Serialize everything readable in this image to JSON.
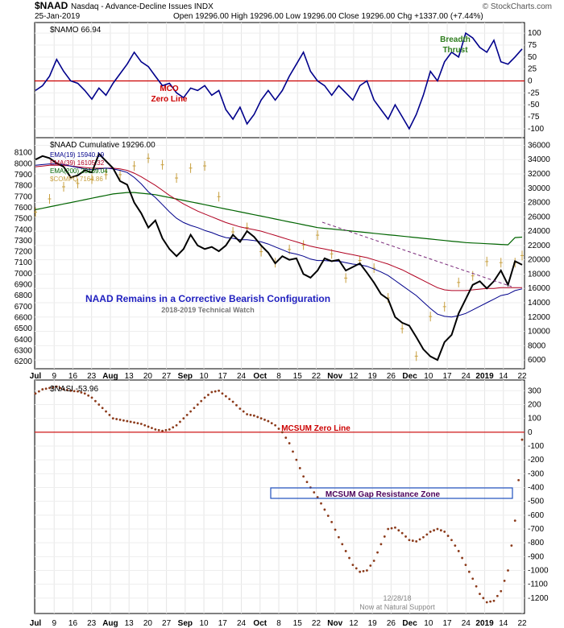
{
  "header": {
    "symbol": "$NAAD",
    "description": "Nasdaq - Advance-Decline Issues INDX",
    "date": "25-Jan-2019",
    "ohlc": "Open 19296.00  High 19296.00  Low 19296.00  Close 19296.00  Chg +1337.00 (+7.44%)",
    "credit": "© StockCharts.com"
  },
  "panels": {
    "namo": {
      "legend": "$NAMO 66.94",
      "annotation_zero": [
        "MCO",
        "Zero Line"
      ],
      "annotation_thrust": [
        "Breadth",
        "Thrust"
      ],
      "ticks": [
        "100",
        "75",
        "50",
        "25",
        "0",
        "-25",
        "-50",
        "-75",
        "-100"
      ]
    },
    "naad": {
      "legend": [
        "$NAAD Cumulative 19296.00",
        "EMA(19) 15940.19",
        "EMA(39) 16105.32",
        "EMA(200) 23169.04",
        "$COMPQ 7164.86"
      ],
      "title": "NAAD Remains in a Corrective Bearish Configuration",
      "subtitle": "2018-2019 Technical Watch",
      "left_ticks": [
        "8100",
        "8000",
        "7900",
        "7800",
        "7700",
        "7600",
        "7500",
        "7400",
        "7300",
        "7200",
        "7100",
        "7000",
        "6900",
        "6800",
        "6700",
        "6600",
        "6500",
        "6400",
        "6300",
        "6200"
      ],
      "right_ticks": [
        "36000",
        "34000",
        "32000",
        "30000",
        "28000",
        "26000",
        "24000",
        "22000",
        "20000",
        "18000",
        "16000",
        "14000",
        "12000",
        "10000",
        "8000",
        "6000"
      ]
    },
    "nasi": {
      "legend": "$NASI -53.96",
      "zero_label": "MCSUM Zero Line",
      "zone_label": "MCSUM Gap Resistance Zone",
      "note": [
        "12/28/18",
        "Now at Natural Support"
      ],
      "ticks": [
        "300",
        "200",
        "100",
        "0",
        "-100",
        "-200",
        "-300",
        "-400",
        "-500",
        "-600",
        "-700",
        "-800",
        "-900",
        "-1000",
        "-1100",
        "-1200"
      ]
    }
  },
  "x_axis_labels": [
    "Jul",
    "9",
    "16",
    "23",
    "Aug",
    "13",
    "20",
    "27",
    "Sep",
    "10",
    "17",
    "24",
    "Oct",
    "8",
    "15",
    "22",
    "Nov",
    "12",
    "19",
    "26",
    "Dec",
    "10",
    "17",
    "24",
    "2019",
    "14",
    "22"
  ],
  "colors": {
    "namo_line": "#00008b",
    "naad_line": "#000000",
    "ema19": "#00008b",
    "ema39": "#b00020",
    "ema200": "#006400",
    "compq": "#c8a040",
    "zero_line": "#cc0000",
    "nasi_dots": "#8b3a1a",
    "title": "#1f1fbf",
    "thrust": "#2e7d1e",
    "zone": "#1f4fbf",
    "zone_text": "#4b0059"
  },
  "chart_data": [
    {
      "type": "line",
      "name_ref": "NAMO",
      "ylim": [
        -112,
        112
      ],
      "x": [
        0,
        2,
        4,
        6,
        8,
        10,
        12,
        14,
        16,
        18,
        20,
        22,
        24,
        26,
        28,
        30,
        32,
        34,
        36,
        38,
        40,
        42,
        44,
        46,
        48,
        50,
        52,
        54,
        56,
        58,
        60,
        62,
        64,
        66,
        68,
        70,
        72,
        74,
        76,
        78,
        80,
        82,
        84,
        86,
        88,
        90,
        92,
        94,
        96,
        98,
        100,
        102,
        104,
        106,
        108,
        110,
        112,
        114,
        116,
        118,
        120,
        122,
        124,
        126,
        128,
        130,
        132,
        134,
        136,
        138
      ],
      "values": [
        -20,
        -10,
        10,
        45,
        20,
        0,
        -5,
        -20,
        -38,
        -15,
        -30,
        -5,
        15,
        35,
        60,
        40,
        30,
        10,
        -10,
        -5,
        -25,
        -35,
        -15,
        -20,
        -10,
        -30,
        -20,
        -60,
        -80,
        -55,
        -90,
        -70,
        -40,
        -20,
        -40,
        -20,
        10,
        35,
        60,
        20,
        0,
        -10,
        -30,
        -10,
        -25,
        -40,
        -10,
        0,
        -40,
        -60,
        -80,
        -50,
        -75,
        -100,
        -70,
        -30,
        20,
        0,
        40,
        60,
        50,
        100,
        90,
        70,
        60,
        85,
        40,
        35,
        50,
        66.94
      ]
    },
    {
      "type": "line",
      "name_ref": "NAAD Cumulative",
      "ylim": [
        5000,
        36500
      ],
      "x": [
        0,
        2,
        4,
        6,
        8,
        10,
        12,
        14,
        16,
        18,
        20,
        22,
        24,
        26,
        28,
        30,
        32,
        34,
        36,
        38,
        40,
        42,
        44,
        46,
        48,
        50,
        52,
        54,
        56,
        58,
        60,
        62,
        64,
        66,
        68,
        70,
        72,
        74,
        76,
        78,
        80,
        82,
        84,
        86,
        88,
        90,
        92,
        94,
        96,
        98,
        100,
        102,
        104,
        106,
        108,
        110,
        112,
        114,
        116,
        118,
        120,
        122,
        124,
        126,
        128,
        130,
        132,
        134,
        136,
        138
      ],
      "series": [
        {
          "name": "$NAAD Cumulative",
          "values": [
            34000,
            34500,
            34200,
            33500,
            33000,
            31500,
            31800,
            32500,
            32200,
            34800,
            33800,
            32800,
            31000,
            30500,
            28000,
            26500,
            24500,
            25500,
            23000,
            21500,
            20500,
            21500,
            23500,
            22000,
            21500,
            21800,
            21200,
            22000,
            23500,
            22500,
            24000,
            23200,
            22000,
            21000,
            19500,
            20500,
            20000,
            20200,
            18000,
            17500,
            18500,
            20200,
            19800,
            20000,
            18500,
            19000,
            19500,
            18200,
            16800,
            15200,
            14500,
            12000,
            11200,
            10800,
            9200,
            7500,
            6500,
            6000,
            8500,
            9500,
            12500,
            14500,
            16500,
            17000,
            16000,
            17000,
            18500,
            16500,
            19800,
            19296
          ]
        },
        {
          "name": "EMA(19)",
          "values": [
            33200,
            33300,
            33400,
            33400,
            33300,
            33100,
            32900,
            32700,
            32600,
            32700,
            32800,
            32700,
            32500,
            32200,
            31500,
            30600,
            29500,
            28700,
            27700,
            26700,
            25800,
            25200,
            24800,
            24500,
            24100,
            23800,
            23400,
            23100,
            23000,
            22800,
            22800,
            22700,
            22500,
            22200,
            21800,
            21400,
            21000,
            20800,
            20500,
            20100,
            19900,
            19900,
            19800,
            19800,
            19600,
            19400,
            19300,
            19100,
            18700,
            18300,
            17800,
            17100,
            16400,
            15700,
            15000,
            14100,
            13200,
            12400,
            12100,
            12000,
            12200,
            12500,
            13000,
            13500,
            14000,
            14500,
            15000,
            15200,
            15700,
            15940
          ]
        },
        {
          "name": "EMA(39)",
          "values": [
            33000,
            33100,
            33200,
            33200,
            33200,
            33100,
            33000,
            32900,
            32800,
            32800,
            32800,
            32800,
            32700,
            32500,
            32100,
            31600,
            31000,
            30400,
            29700,
            29000,
            28400,
            27800,
            27300,
            26800,
            26400,
            26000,
            25600,
            25200,
            24900,
            24600,
            24400,
            24200,
            24000,
            23700,
            23400,
            23100,
            22800,
            22500,
            22200,
            21900,
            21700,
            21500,
            21300,
            21100,
            20900,
            20700,
            20500,
            20300,
            20000,
            19700,
            19400,
            19000,
            18600,
            18100,
            17600,
            17100,
            16600,
            16100,
            15800,
            15700,
            15700,
            15700,
            15800,
            15900,
            16000,
            16000,
            16100,
            16100,
            16100,
            16105
          ]
        },
        {
          "name": "EMA(200)",
          "values": [
            27000,
            27200,
            27400,
            27600,
            27800,
            28000,
            28200,
            28400,
            28600,
            28800,
            29000,
            29200,
            29300,
            29400,
            29400,
            29300,
            29200,
            29100,
            28900,
            28700,
            28500,
            28300,
            28100,
            27900,
            27700,
            27500,
            27300,
            27100,
            26900,
            26700,
            26500,
            26300,
            26100,
            25900,
            25700,
            25500,
            25300,
            25100,
            24900,
            24700,
            24500,
            24400,
            24300,
            24200,
            24100,
            24000,
            23900,
            23800,
            23700,
            23600,
            23500,
            23400,
            23300,
            23200,
            23100,
            23000,
            22900,
            22800,
            22700,
            22600,
            22500,
            22400,
            22350,
            22300,
            22250,
            22200,
            22150,
            22100,
            23100,
            23169
          ]
        }
      ]
    },
    {
      "type": "line",
      "name_ref": "$COMPQ",
      "ylim": [
        6150,
        8200
      ],
      "x": [
        0,
        4,
        8,
        12,
        16,
        20,
        24,
        28,
        32,
        36,
        40,
        44,
        48,
        52,
        56,
        60,
        64,
        68,
        72,
        76,
        80,
        84,
        88,
        92,
        96,
        100,
        104,
        108,
        112,
        116,
        120,
        124,
        128,
        132,
        136,
        138
      ],
      "values": [
        7560,
        7680,
        7790,
        7820,
        7860,
        7900,
        7900,
        7980,
        8050,
        7990,
        7870,
        7960,
        7980,
        7700,
        7380,
        7420,
        7200,
        7100,
        7220,
        7260,
        7350,
        7180,
        6960,
        7120,
        7050,
        6780,
        6500,
        6250,
        6610,
        6700,
        6920,
        6980,
        7110,
        7100,
        7100,
        7164.86
      ]
    },
    {
      "type": "scatter",
      "name_ref": "$NASI",
      "ylim": [
        -1300,
        360
      ],
      "x": [
        0,
        2,
        4,
        6,
        8,
        10,
        12,
        14,
        16,
        18,
        20,
        22,
        24,
        26,
        28,
        30,
        32,
        34,
        36,
        38,
        40,
        42,
        44,
        46,
        48,
        50,
        52,
        54,
        56,
        58,
        60,
        62,
        64,
        66,
        68,
        70,
        72,
        74,
        76,
        78,
        80,
        82,
        84,
        86,
        88,
        90,
        92,
        94,
        96,
        98,
        100,
        102,
        104,
        106,
        108,
        110,
        112,
        114,
        116,
        118,
        120,
        122,
        124,
        126,
        128,
        130,
        132,
        134,
        136,
        138
      ],
      "values": [
        280,
        310,
        320,
        330,
        310,
        300,
        295,
        280,
        250,
        200,
        150,
        100,
        90,
        80,
        70,
        60,
        40,
        20,
        10,
        20,
        50,
        100,
        150,
        200,
        250,
        290,
        300,
        260,
        220,
        170,
        130,
        120,
        100,
        80,
        50,
        0,
        -80,
        -200,
        -320,
        -400,
        -470,
        -560,
        -650,
        -760,
        -860,
        -960,
        -1010,
        -1000,
        -930,
        -810,
        -700,
        -690,
        -730,
        -780,
        -790,
        -760,
        -720,
        -700,
        -720,
        -780,
        -860,
        -960,
        -1060,
        -1170,
        -1230,
        -1220,
        -1150,
        -1000,
        -640,
        -53.96
      ]
    }
  ]
}
